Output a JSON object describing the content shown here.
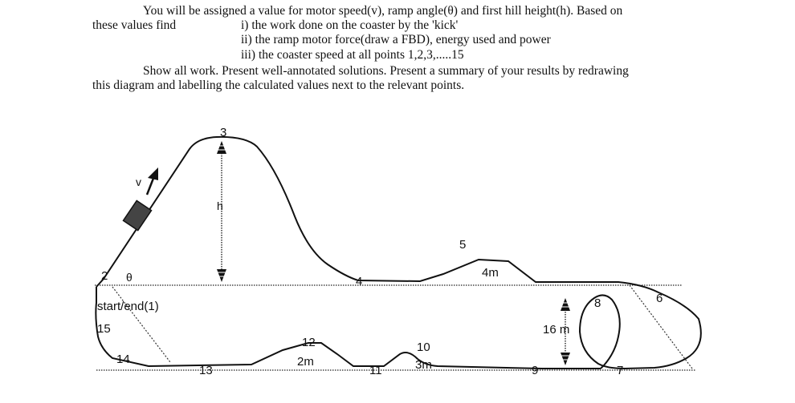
{
  "instructions": {
    "line1": "You will be assigned a value for motor speed(v), ramp angle(θ) and first hill height(h). Based on",
    "line2_lead": "these values find",
    "item_i": "i) the work done on the coaster by the 'kick'",
    "item_ii": "ii) the ramp motor force(draw a FBD), energy used and power",
    "item_iii": "iii) the coaster speed at all points 1,2,3,.....15",
    "line_show": "Show all work. Present well-annotated solutions. Present a summary of your results by redrawing",
    "line_last": "this diagram and labelling the calculated values next to the relevant points."
  },
  "diagram": {
    "labels": {
      "v": "v",
      "h": "h",
      "theta": "θ",
      "start_end": "start/end(1)",
      "height_4m": "4m",
      "height_2m": "2m",
      "height_3m": "3m",
      "height_16m": "16 m"
    },
    "points": {
      "p2": "2",
      "p3": "3",
      "p4": "4",
      "p5": "5",
      "p6": "6",
      "p7": "7",
      "p8": "8",
      "p9": "9",
      "p10": "10",
      "p11": "11",
      "p12": "12",
      "p13": "13",
      "p14": "14",
      "p15": "15"
    }
  }
}
